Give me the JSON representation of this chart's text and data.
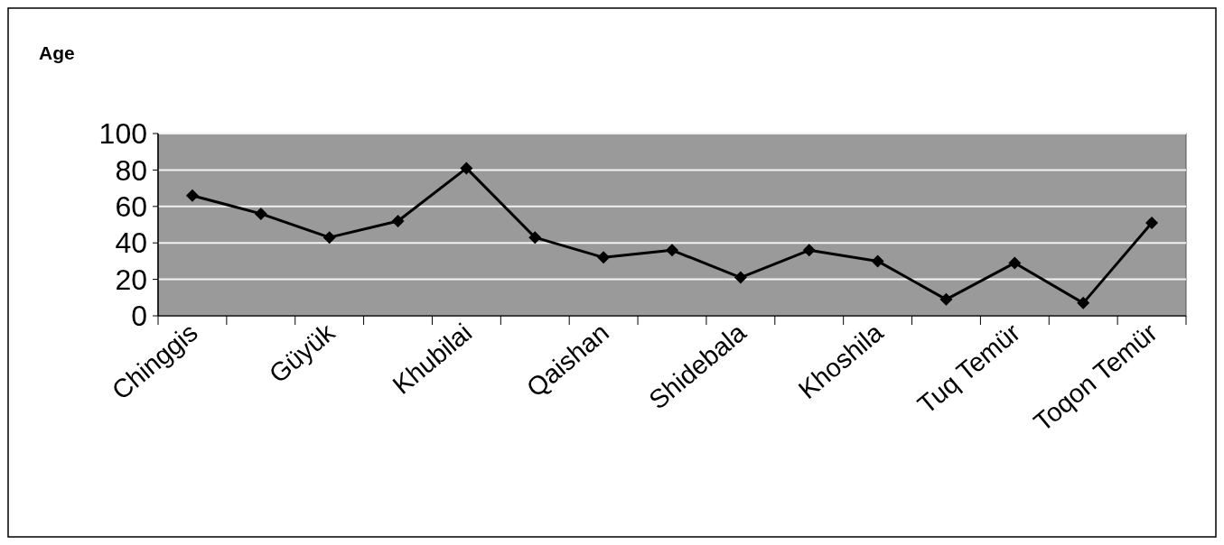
{
  "chart_data": {
    "type": "line",
    "ylabel": "Age",
    "categories": [
      "Chinggis",
      null,
      "Güyük",
      null,
      "Khubilai",
      null,
      "Qaishan",
      null,
      "Shidebala",
      null,
      "Khoshila",
      null,
      "Tuq Temür",
      null,
      "Toqon Temür"
    ],
    "series": [
      {
        "color": "#000000",
        "values": [
          66,
          56,
          43,
          52,
          81,
          43,
          32,
          36,
          21,
          36,
          30,
          9,
          29,
          7,
          51
        ]
      }
    ],
    "ylim": [
      0,
      100
    ],
    "yticks": [
      0,
      20,
      40,
      60,
      80,
      100
    ],
    "grid": "y",
    "marker": "diamond",
    "line_style": "solid"
  }
}
